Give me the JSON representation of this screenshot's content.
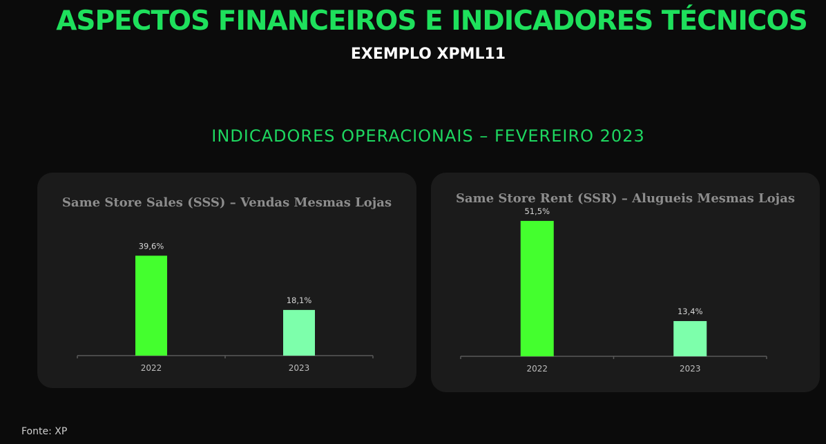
{
  "header": {
    "title": "ASPECTOS FINANCEIROS E INDICADORES TÉCNICOS",
    "subtitle": "EXEMPLO XPML11",
    "section": "INDICADORES OPERACIONAIS – FEVEREIRO 2023"
  },
  "footer": {
    "source": "Fonte: XP"
  },
  "colors": {
    "bar_2022": "#44ff2e",
    "bar_2023": "#7dffab",
    "accent": "#1ee05c"
  },
  "chart_data": [
    {
      "type": "bar",
      "title": "Same Store Sales (SSS) – Vendas Mesmas Lojas",
      "categories": [
        "2022",
        "2023"
      ],
      "values": [
        39.6,
        18.1
      ],
      "data_labels": [
        "39,6%",
        "18,1%"
      ],
      "xlabel": "",
      "ylabel": "",
      "ylim": [
        0,
        55
      ],
      "grid": false
    },
    {
      "type": "bar",
      "title": "Same Store Rent (SSR) – Alugueis Mesmas Lojas",
      "categories": [
        "2022",
        "2023"
      ],
      "values": [
        51.5,
        13.4
      ],
      "data_labels": [
        "51,5%",
        "13,4%"
      ],
      "xlabel": "",
      "ylabel": "",
      "ylim": [
        0,
        55
      ],
      "grid": false
    }
  ]
}
